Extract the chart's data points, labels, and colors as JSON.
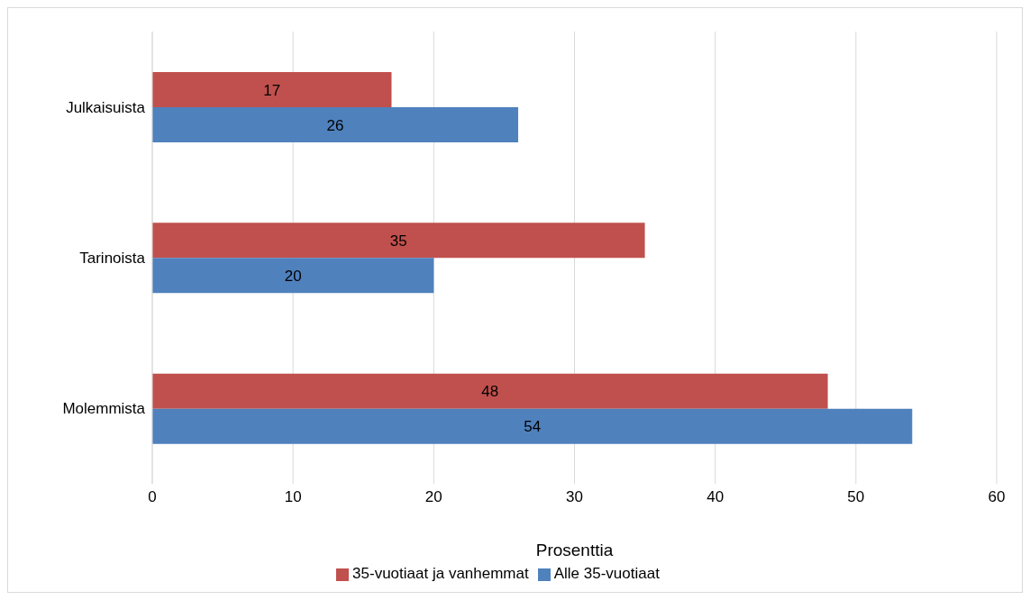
{
  "chart_data": {
    "type": "bar",
    "orientation": "horizontal",
    "categories": [
      "Julkaisuista",
      "Tarinoista",
      "Molemmista"
    ],
    "series": [
      {
        "name": "35-vuotiaat ja vanhemmat",
        "color": "#c0504d",
        "values": [
          17,
          35,
          48
        ]
      },
      {
        "name": "Alle 35-vuotiaat",
        "color": "#4f81bd",
        "values": [
          26,
          20,
          54
        ]
      }
    ],
    "xlabel": "Prosenttia",
    "xlim": [
      0,
      60
    ],
    "xticks": [
      0,
      10,
      20,
      30,
      40,
      50,
      60
    ],
    "grid": "x",
    "legend": "bottom",
    "data_labels": true
  }
}
